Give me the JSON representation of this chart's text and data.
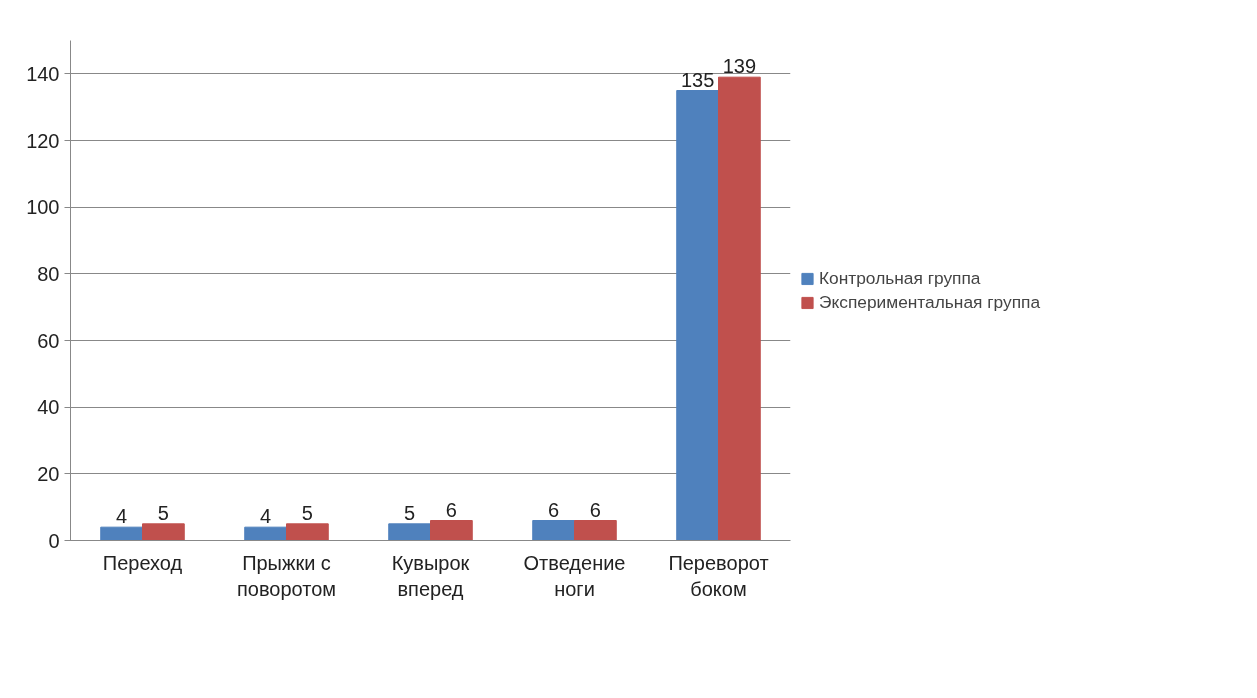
{
  "chart_data": {
    "type": "bar",
    "categories": [
      "Переход",
      "Прыжки с поворотом",
      "Кувырок вперед",
      "Отведение ноги",
      "Переворот боком"
    ],
    "series": [
      {
        "name": "Контрольная группа",
        "color": "#4f81bd",
        "values": [
          4,
          4,
          5,
          6,
          135
        ]
      },
      {
        "name": "Экспериментальная группа",
        "color": "#c0504d",
        "values": [
          5,
          5,
          6,
          6,
          139
        ]
      }
    ],
    "ylim": [
      0,
      150
    ],
    "yticks": [
      0,
      20,
      40,
      60,
      80,
      100,
      120,
      140
    ],
    "grid": "y",
    "legend": "right",
    "data_labels": true
  }
}
